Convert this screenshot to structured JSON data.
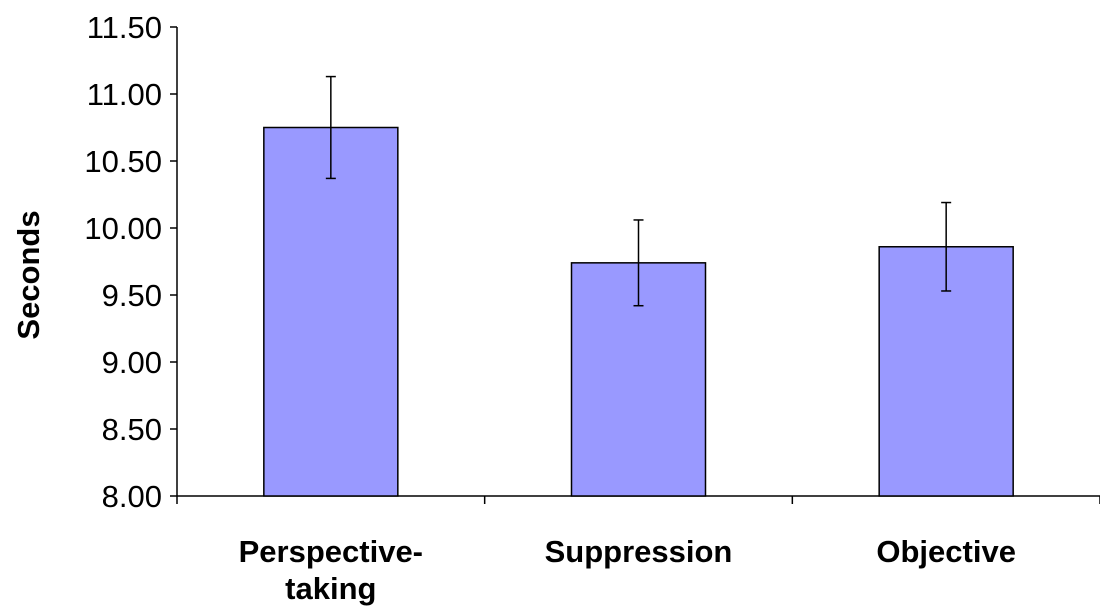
{
  "chart_data": {
    "type": "bar",
    "title": "",
    "xlabel": "",
    "ylabel": "Seconds",
    "categories": [
      [
        "Perspective-",
        "taking"
      ],
      [
        "Suppression"
      ],
      [
        "Objective"
      ]
    ],
    "values": [
      10.75,
      9.74,
      9.86
    ],
    "error": [
      0.38,
      0.32,
      0.33
    ],
    "ylim": [
      8.0,
      11.5
    ],
    "yticks": [
      8.0,
      8.5,
      9.0,
      9.5,
      10.0,
      10.5,
      11.0,
      11.5
    ],
    "ytick_labels": [
      "8.00",
      "8.50",
      "9.00",
      "9.50",
      "10.00",
      "10.50",
      "11.00",
      "11.50"
    ],
    "grid": false,
    "legend": "none",
    "colors": {
      "bar_fill": "#9999ff",
      "bar_stroke": "#000000",
      "axis": "#000000"
    }
  }
}
